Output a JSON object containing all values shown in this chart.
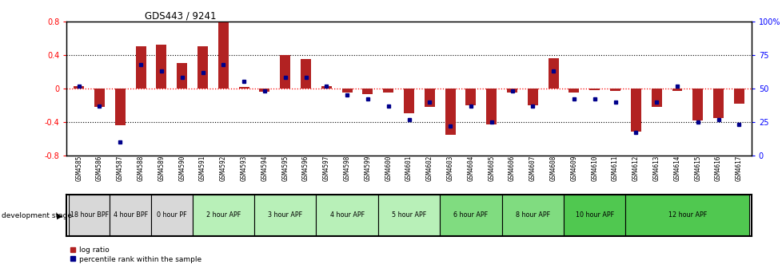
{
  "title": "GDS443 / 9241",
  "samples": [
    "GSM4585",
    "GSM4586",
    "GSM4587",
    "GSM4588",
    "GSM4589",
    "GSM4590",
    "GSM4591",
    "GSM4592",
    "GSM4593",
    "GSM4594",
    "GSM4595",
    "GSM4596",
    "GSM4597",
    "GSM4598",
    "GSM4599",
    "GSM4600",
    "GSM4601",
    "GSM4602",
    "GSM4603",
    "GSM4604",
    "GSM4605",
    "GSM4606",
    "GSM4607",
    "GSM4608",
    "GSM4609",
    "GSM4610",
    "GSM4611",
    "GSM4612",
    "GSM4613",
    "GSM4614",
    "GSM4615",
    "GSM4616",
    "GSM4617"
  ],
  "log_ratio": [
    0.03,
    -0.22,
    -0.44,
    0.5,
    0.52,
    0.3,
    0.5,
    0.8,
    0.02,
    -0.04,
    0.4,
    0.35,
    0.03,
    -0.05,
    -0.07,
    -0.05,
    -0.3,
    -0.22,
    -0.55,
    -0.2,
    -0.43,
    -0.05,
    -0.2,
    0.36,
    -0.05,
    -0.02,
    -0.03,
    -0.52,
    -0.22,
    -0.03,
    -0.38,
    -0.35,
    -0.18
  ],
  "percentile": [
    52,
    37,
    10,
    68,
    63,
    58,
    62,
    68,
    55,
    48,
    58,
    58,
    52,
    45,
    42,
    37,
    27,
    40,
    22,
    37,
    25,
    48,
    37,
    63,
    42,
    42,
    40,
    17,
    40,
    52,
    25,
    27,
    23
  ],
  "stages": [
    {
      "label": "18 hour BPF",
      "start": 0,
      "end": 2,
      "color": "#d8d8d8"
    },
    {
      "label": "4 hour BPF",
      "start": 2,
      "end": 4,
      "color": "#d8d8d8"
    },
    {
      "label": "0 hour PF",
      "start": 4,
      "end": 6,
      "color": "#d8d8d8"
    },
    {
      "label": "2 hour APF",
      "start": 6,
      "end": 9,
      "color": "#b8f0b8"
    },
    {
      "label": "3 hour APF",
      "start": 9,
      "end": 12,
      "color": "#b8f0b8"
    },
    {
      "label": "4 hour APF",
      "start": 12,
      "end": 15,
      "color": "#b8f0b8"
    },
    {
      "label": "5 hour APF",
      "start": 15,
      "end": 18,
      "color": "#b8f0b8"
    },
    {
      "label": "6 hour APF",
      "start": 18,
      "end": 21,
      "color": "#80dc80"
    },
    {
      "label": "8 hour APF",
      "start": 21,
      "end": 24,
      "color": "#80dc80"
    },
    {
      "label": "10 hour APF",
      "start": 24,
      "end": 27,
      "color": "#50c850"
    },
    {
      "label": "12 hour APF",
      "start": 27,
      "end": 33,
      "color": "#50c850"
    }
  ],
  "bar_color": "#b22222",
  "dot_color": "#00008b",
  "ylim_left": [
    -0.8,
    0.8
  ],
  "ylim_right": [
    0,
    100
  ],
  "left_yticks": [
    -0.8,
    -0.4,
    0.0,
    0.4,
    0.8
  ],
  "right_yticks": [
    0,
    25,
    50,
    75,
    100
  ],
  "right_yticklabels": [
    "0",
    "25",
    "50",
    "75",
    "100%"
  ],
  "fig_width": 9.79,
  "fig_height": 3.36
}
